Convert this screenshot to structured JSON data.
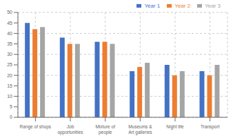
{
  "chart_data": {
    "type": "bar",
    "categories": [
      "Range of shops",
      "Job\nopportunities",
      "Mixture of\npeople",
      "Museums &\nArt galleries",
      "Night life",
      "Transport"
    ],
    "series": [
      {
        "name": "Year 1",
        "color": "#4472C4",
        "values": [
          45,
          38,
          36,
          22,
          25,
          22
        ]
      },
      {
        "name": "Year 2",
        "color": "#ED7D31",
        "values": [
          42,
          35,
          36,
          24,
          20,
          20
        ]
      },
      {
        "name": "Year 3",
        "color": "#A5A5A5",
        "values": [
          43,
          35,
          35,
          26,
          22,
          25
        ]
      }
    ],
    "ylim": [
      0,
      50
    ],
    "yticks": [
      0,
      5,
      10,
      15,
      20,
      25,
      30,
      35,
      40,
      45,
      50
    ],
    "grid": true,
    "legend": "upper right"
  }
}
